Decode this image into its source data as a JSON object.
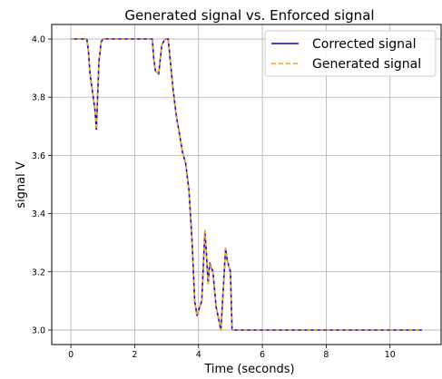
{
  "chart_data": {
    "type": "line",
    "title": "Generated signal vs. Enforced signal",
    "xlabel": "Time (seconds)",
    "ylabel": "signal V",
    "xlim": [
      -0.6,
      11.6
    ],
    "ylim": [
      2.95,
      4.05
    ],
    "xticks": [
      0,
      2,
      4,
      6,
      8,
      10
    ],
    "yticks": [
      3.0,
      3.2,
      3.4,
      3.6,
      3.8,
      4.0
    ],
    "xtick_labels": [
      "0",
      "2",
      "4",
      "6",
      "8",
      "10"
    ],
    "ytick_labels": [
      "3.0",
      "3.2",
      "3.4",
      "3.6",
      "3.8",
      "4.0"
    ],
    "grid": true,
    "legend_position": "top-right",
    "series": [
      {
        "name": "Corrected signal",
        "color": "#0000ff",
        "style": "solid",
        "x": [
          0.0,
          0.5,
          0.55,
          0.6,
          0.75,
          0.8,
          0.88,
          0.95,
          1.0,
          2.55,
          2.6,
          2.65,
          2.75,
          2.85,
          2.95,
          3.05,
          3.2,
          3.3,
          3.5,
          3.6,
          3.7,
          3.8,
          3.88,
          3.95,
          4.1,
          4.2,
          4.25,
          4.3,
          4.35,
          4.45,
          4.55,
          4.7,
          4.85,
          4.9,
          5.0,
          5.05,
          11.0
        ],
        "y": [
          4.0,
          4.0,
          3.96,
          3.88,
          3.76,
          3.69,
          3.92,
          3.99,
          4.0,
          4.0,
          3.93,
          3.89,
          3.88,
          3.98,
          4.0,
          4.0,
          3.83,
          3.74,
          3.61,
          3.57,
          3.48,
          3.3,
          3.1,
          3.05,
          3.1,
          3.34,
          3.26,
          3.16,
          3.23,
          3.2,
          3.08,
          3.0,
          3.28,
          3.24,
          3.2,
          3.0,
          3.0
        ]
      },
      {
        "name": "Generated signal",
        "color": "#ffa500",
        "style": "dashed",
        "x": [
          0.0,
          0.5,
          0.55,
          0.6,
          0.75,
          0.8,
          0.88,
          0.95,
          1.0,
          2.55,
          2.6,
          2.65,
          2.75,
          2.85,
          2.95,
          3.05,
          3.2,
          3.3,
          3.5,
          3.6,
          3.7,
          3.8,
          3.88,
          3.95,
          4.1,
          4.2,
          4.25,
          4.3,
          4.35,
          4.45,
          4.55,
          4.7,
          4.85,
          4.9,
          5.0,
          5.05,
          11.0
        ],
        "y": [
          4.0,
          4.0,
          3.96,
          3.88,
          3.76,
          3.69,
          3.92,
          3.99,
          4.0,
          4.0,
          3.93,
          3.89,
          3.88,
          3.98,
          4.0,
          4.0,
          3.83,
          3.74,
          3.61,
          3.57,
          3.48,
          3.3,
          3.1,
          3.05,
          3.1,
          3.34,
          3.26,
          3.16,
          3.23,
          3.2,
          3.08,
          3.0,
          3.28,
          3.24,
          3.2,
          3.0,
          3.0
        ]
      }
    ]
  }
}
